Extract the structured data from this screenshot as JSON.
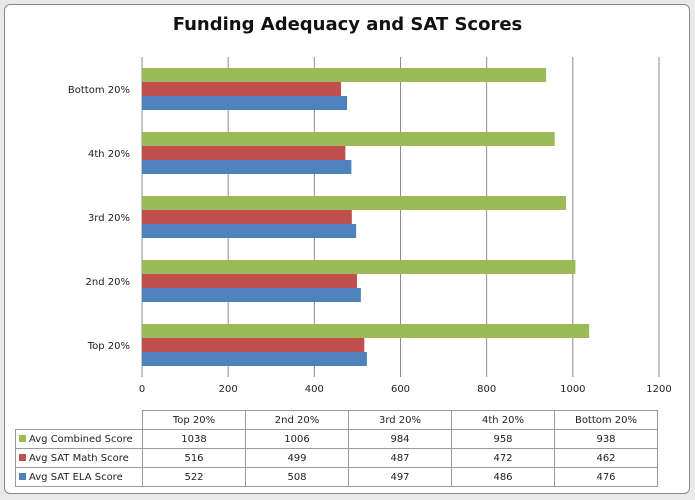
{
  "chart_data": {
    "type": "bar",
    "orientation": "horizontal",
    "title": "Funding Adequacy and SAT Scores",
    "categories": [
      "Top 20%",
      "2nd 20%",
      "3rd 20%",
      "4th 20%",
      "Bottom 20%"
    ],
    "series": [
      {
        "name": "Avg Combined Score",
        "color": "#9bbb59",
        "values": [
          1038,
          1006,
          984,
          958,
          938
        ]
      },
      {
        "name": "Avg SAT Math Score",
        "color": "#c0504d",
        "values": [
          516,
          499,
          487,
          472,
          462
        ]
      },
      {
        "name": "Avg SAT ELA Score",
        "color": "#4f81bd",
        "values": [
          522,
          508,
          497,
          486,
          476
        ]
      }
    ],
    "xlim": [
      0,
      1200
    ],
    "xticks": [
      0,
      200,
      400,
      600,
      800,
      1000,
      1200
    ],
    "grid": true,
    "legend": "data-table"
  }
}
